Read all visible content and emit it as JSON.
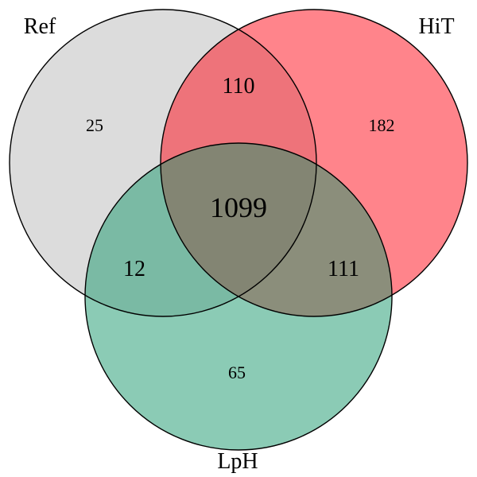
{
  "sets": {
    "ref": {
      "label": "Ref",
      "color": "#bfbfbf"
    },
    "hit": {
      "label": "HiT",
      "color": "#ff0a17"
    },
    "lph": {
      "label": "LpH",
      "color": "#18986b"
    }
  },
  "regions": {
    "ref_only": "25",
    "hit_only": "182",
    "lph_only": "65",
    "ref_hit": "110",
    "ref_lph": "12",
    "hit_lph": "111",
    "all_three": "1099"
  }
}
